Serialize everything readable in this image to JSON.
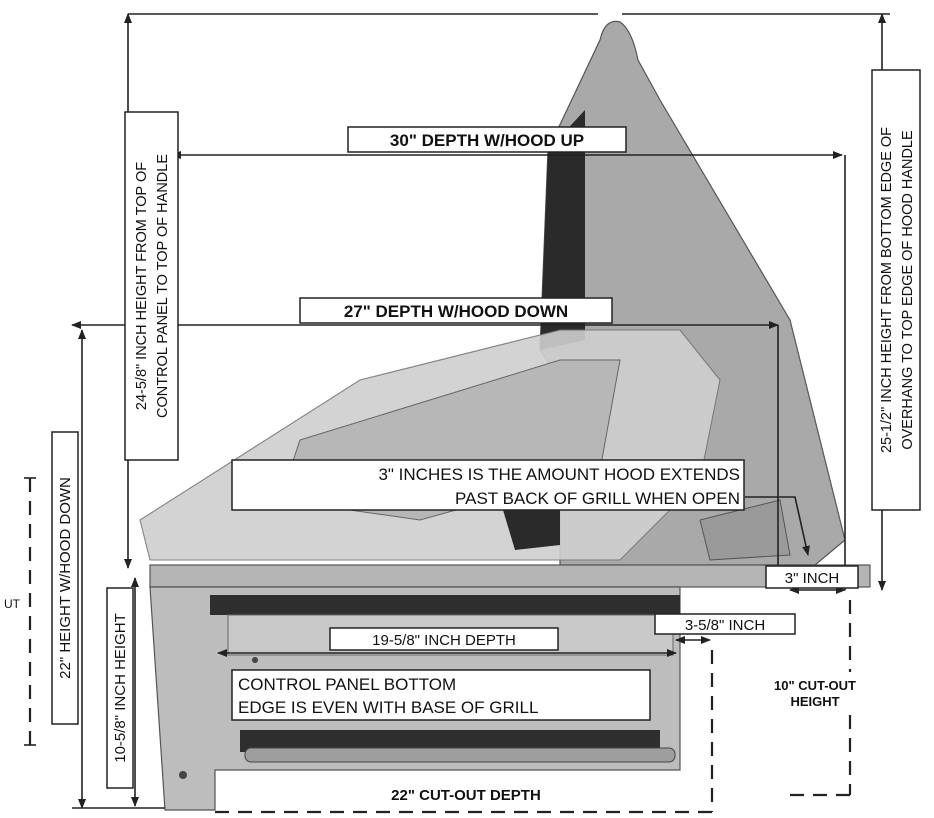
{
  "labels": {
    "depth_hood_up": "30\" DEPTH W/HOOD UP",
    "depth_hood_down": "27\" DEPTH W/HOOD DOWN",
    "height_top_control_panel_line1": "24-5/8\" INCH HEIGHT FROM TOP OF",
    "height_top_control_panel_line2": "CONTROL PANEL TO TOP OF HANDLE",
    "height_hood_down": "22\" HEIGHT W/HOOD DOWN",
    "height_10_5_8": "10-5/8\" INCH HEIGHT",
    "right_height_line1": "25-1/2\" INCH HEIGHT FROM BOTTOM EDGE OF",
    "right_height_line2": "OVERHANG TO TOP EDGE OF HOOD HANDLE",
    "hood_extends_line1": "3\" INCHES IS THE AMOUNT HOOD EXTENDS",
    "hood_extends_line2": "PAST BACK OF GRILL WHEN OPEN",
    "three_inch": "3\" INCH",
    "depth_19_5_8": "19-5/8\" INCH DEPTH",
    "three_5_8_inch": "3-5/8\" INCH",
    "control_panel_line1": "CONTROL PANEL BOTTOM",
    "control_panel_line2": "EDGE IS EVEN WITH BASE OF GRILL",
    "cutout_height_line1": "10\" CUT-OUT",
    "cutout_height_line2": "HEIGHT",
    "cutout_depth": "22\" CUT-OUT DEPTH",
    "left_edge_fragment": "UT"
  },
  "colors": {
    "grill_body": "#b4b4b4",
    "hood_open": "#a7a7a7",
    "hood_closed": "#c6c6c6",
    "dark_parts": "#2a2a2a",
    "line": "#222222"
  }
}
